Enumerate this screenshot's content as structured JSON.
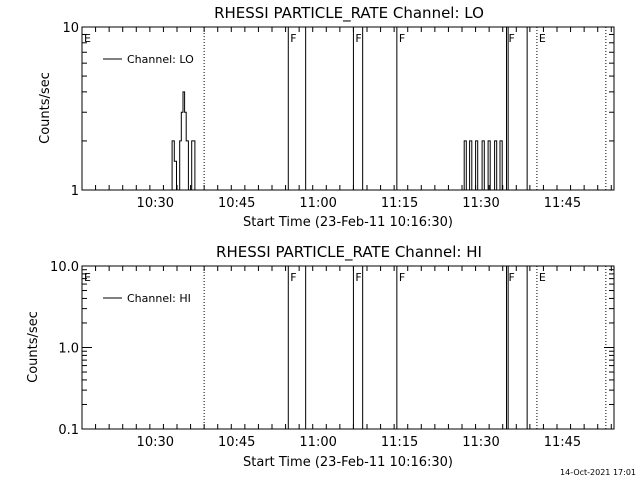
{
  "timestamp": "14-Oct-2021 17:01",
  "chart_data": [
    {
      "type": "line",
      "title": "RHESSI PARTICLE_RATE Channel: LO",
      "xlabel": "Start Time (23-Feb-11 10:16:30)",
      "ylabel": "Counts/sec",
      "yscale": "log",
      "ylim": [
        1,
        10
      ],
      "yticks": [
        1,
        10
      ],
      "ytick_labels": [
        "1",
        "10"
      ],
      "xlim_minutes_after_start": [
        0,
        98
      ],
      "xticks": [
        {
          "label": "10:30",
          "minute": 13.5
        },
        {
          "label": "10:45",
          "minute": 28.5
        },
        {
          "label": "11:00",
          "minute": 43.5
        },
        {
          "label": "11:15",
          "minute": 58.5
        },
        {
          "label": "11:30",
          "minute": 73.5
        },
        {
          "label": "11:45",
          "minute": 88.5
        }
      ],
      "legend": {
        "label": "Channel: LO",
        "position": "top-left"
      },
      "markers": [
        {
          "minute": 0,
          "label": "E",
          "style": "dotted"
        },
        {
          "minute": 22.5,
          "style": "dotted"
        },
        {
          "minute": 38.0,
          "label": "F",
          "style": "solid"
        },
        {
          "minute": 41.2,
          "style": "solid"
        },
        {
          "minute": 50.0,
          "label": "F",
          "style": "solid"
        },
        {
          "minute": 51.7,
          "style": "solid"
        },
        {
          "minute": 58.0,
          "label": "F",
          "style": "solid"
        },
        {
          "minute": 78.2,
          "label": "F",
          "style": "solid"
        },
        {
          "minute": 78.5,
          "style": "solid"
        },
        {
          "minute": 82.0,
          "style": "solid"
        },
        {
          "minute": 83.8,
          "label": "E",
          "style": "dotted"
        },
        {
          "minute": 96.5,
          "style": "dotted"
        }
      ],
      "series": [
        {
          "points": [
            [
              16.6,
              1
            ],
            [
              16.6,
              2
            ],
            [
              17.0,
              2
            ],
            [
              17.0,
              1.5
            ],
            [
              17.4,
              1.5
            ],
            [
              17.4,
              1
            ],
            [
              18.0,
              1
            ],
            [
              18.0,
              2
            ],
            [
              18.3,
              2
            ],
            [
              18.3,
              3
            ],
            [
              18.6,
              3
            ],
            [
              18.6,
              4
            ],
            [
              18.9,
              4
            ],
            [
              18.9,
              3
            ],
            [
              19.2,
              3
            ],
            [
              19.2,
              2
            ],
            [
              19.6,
              2
            ],
            [
              19.6,
              1
            ],
            [
              20.2,
              1
            ],
            [
              20.2,
              2
            ],
            [
              20.8,
              2
            ],
            [
              20.8,
              1
            ]
          ]
        },
        {
          "points": [
            [
              70.4,
              1
            ],
            [
              70.4,
              2
            ],
            [
              70.8,
              2
            ],
            [
              70.8,
              1
            ],
            [
              71.4,
              1
            ],
            [
              71.4,
              2
            ],
            [
              71.8,
              2
            ],
            [
              71.8,
              1
            ],
            [
              72.5,
              1
            ],
            [
              72.5,
              2
            ],
            [
              72.9,
              2
            ],
            [
              72.9,
              1
            ],
            [
              73.7,
              1
            ],
            [
              73.7,
              2
            ],
            [
              74.1,
              2
            ],
            [
              74.1,
              1
            ],
            [
              74.8,
              1
            ],
            [
              74.8,
              2
            ],
            [
              75.2,
              2
            ],
            [
              75.2,
              1
            ],
            [
              76.0,
              1
            ],
            [
              76.0,
              2
            ],
            [
              76.4,
              2
            ],
            [
              76.4,
              1
            ],
            [
              77.0,
              1
            ],
            [
              77.0,
              2
            ],
            [
              77.4,
              2
            ],
            [
              77.4,
              1
            ]
          ]
        }
      ]
    },
    {
      "type": "line",
      "title": "RHESSI PARTICLE_RATE Channel: HI",
      "xlabel": "Start Time (23-Feb-11 10:16:30)",
      "ylabel": "Counts/sec",
      "yscale": "log",
      "ylim": [
        0.1,
        10
      ],
      "yticks": [
        0.1,
        1,
        10
      ],
      "ytick_labels": [
        "0.1",
        "1.0",
        "10.0"
      ],
      "xlim_minutes_after_start": [
        0,
        98
      ],
      "xticks": [
        {
          "label": "10:30",
          "minute": 13.5
        },
        {
          "label": "10:45",
          "minute": 28.5
        },
        {
          "label": "11:00",
          "minute": 43.5
        },
        {
          "label": "11:15",
          "minute": 58.5
        },
        {
          "label": "11:30",
          "minute": 73.5
        },
        {
          "label": "11:45",
          "minute": 88.5
        }
      ],
      "legend": {
        "label": "Channel: HI",
        "position": "top-left"
      },
      "markers": [
        {
          "minute": 0,
          "label": "E",
          "style": "dotted"
        },
        {
          "minute": 22.5,
          "style": "dotted"
        },
        {
          "minute": 38.0,
          "label": "F",
          "style": "solid"
        },
        {
          "minute": 41.2,
          "style": "solid"
        },
        {
          "minute": 50.0,
          "label": "F",
          "style": "solid"
        },
        {
          "minute": 51.7,
          "style": "solid"
        },
        {
          "minute": 58.0,
          "label": "F",
          "style": "solid"
        },
        {
          "minute": 78.2,
          "label": "F",
          "style": "solid"
        },
        {
          "minute": 78.5,
          "style": "solid"
        },
        {
          "minute": 82.0,
          "style": "solid"
        },
        {
          "minute": 83.8,
          "label": "E",
          "style": "dotted"
        },
        {
          "minute": 96.5,
          "style": "dotted"
        }
      ],
      "series": []
    }
  ]
}
